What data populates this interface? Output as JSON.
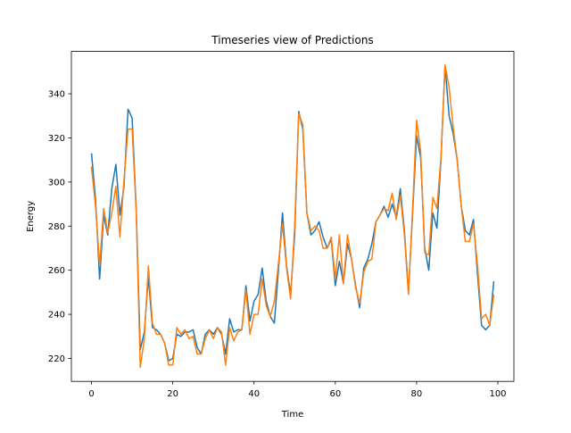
{
  "chart_data": {
    "type": "line",
    "title": "Timeseries view of Predictions",
    "xlabel": "Time",
    "ylabel": "Energy",
    "xlim": [
      -4.95,
      103.95
    ],
    "ylim": [
      209.6,
      359.2
    ],
    "xticks": [
      0,
      20,
      40,
      60,
      80,
      100
    ],
    "yticks": [
      220,
      240,
      260,
      280,
      300,
      320,
      340
    ],
    "grid": false,
    "legend": "none",
    "x": [
      0,
      1,
      2,
      3,
      4,
      5,
      6,
      7,
      8,
      9,
      10,
      11,
      12,
      13,
      14,
      15,
      16,
      17,
      18,
      19,
      20,
      21,
      22,
      23,
      24,
      25,
      26,
      27,
      28,
      29,
      30,
      31,
      32,
      33,
      34,
      35,
      36,
      37,
      38,
      39,
      40,
      41,
      42,
      43,
      44,
      45,
      46,
      47,
      48,
      49,
      50,
      51,
      52,
      53,
      54,
      55,
      56,
      57,
      58,
      59,
      60,
      61,
      62,
      63,
      64,
      65,
      66,
      67,
      68,
      69,
      70,
      71,
      72,
      73,
      74,
      75,
      76,
      77,
      78,
      79,
      80,
      81,
      82,
      83,
      84,
      85,
      86,
      87,
      88,
      89,
      90,
      91,
      92,
      93,
      94,
      95,
      96,
      97,
      98,
      99
    ],
    "series": [
      {
        "color": "#1f77b4",
        "values": [
          313,
          292,
          256,
          285,
          276,
          297,
          308,
          285,
          298,
          333,
          329,
          288,
          224,
          232,
          257,
          234,
          233,
          231,
          227,
          219,
          220,
          231,
          230,
          232,
          232,
          233,
          225,
          222,
          231,
          233,
          231,
          234,
          231,
          222,
          238,
          232,
          233,
          233,
          253,
          237,
          246,
          249,
          261,
          246,
          239,
          236,
          260,
          286,
          262,
          249,
          276,
          332,
          324,
          286,
          276,
          278,
          282,
          275,
          270,
          274,
          253,
          264,
          254,
          272,
          265,
          253,
          243,
          261,
          265,
          272,
          282,
          285,
          289,
          284,
          290,
          284,
          297,
          278,
          250,
          285,
          321,
          311,
          270,
          260,
          286,
          279,
          310,
          353,
          330,
          322,
          310,
          289,
          278,
          276,
          283,
          258,
          235,
          233,
          235,
          255
        ]
      },
      {
        "color": "#ff7f0e",
        "values": [
          307,
          289,
          262,
          288,
          277,
          286,
          298,
          275,
          301,
          324,
          324,
          287,
          216,
          229,
          262,
          236,
          231,
          231,
          227,
          217,
          217,
          234,
          231,
          233,
          229,
          230,
          222,
          222,
          229,
          233,
          229,
          234,
          232,
          217,
          234,
          228,
          232,
          233,
          251,
          231,
          240,
          240,
          256,
          244,
          239,
          246,
          263,
          281,
          261,
          247,
          280,
          331,
          326,
          286,
          278,
          280,
          278,
          270,
          270,
          275,
          256,
          276,
          254,
          276,
          265,
          252,
          245,
          259,
          264,
          265,
          282,
          285,
          288,
          287,
          295,
          283,
          294,
          276,
          249,
          287,
          328,
          314,
          268,
          267,
          293,
          288,
          311,
          353,
          343,
          325,
          310,
          289,
          273,
          273,
          281,
          262,
          238,
          240,
          235,
          249
        ]
      }
    ]
  }
}
